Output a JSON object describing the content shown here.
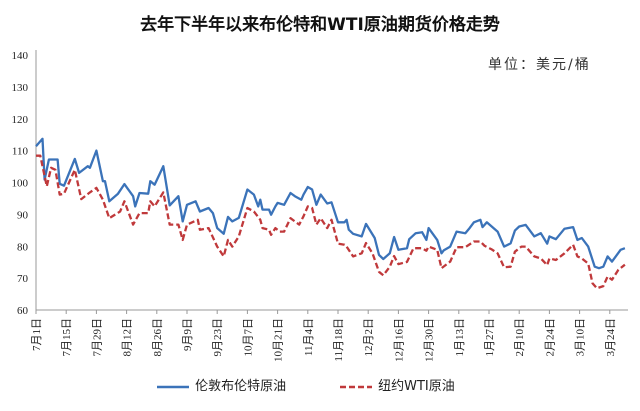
{
  "chart_data": {
    "type": "line",
    "title": "去年下半年以来布伦特和WTI原油期货价格走势",
    "unit_label": "单位：美元/桶",
    "xlabel": "",
    "ylabel": "",
    "ylim": [
      60,
      140
    ],
    "yticks": [
      60,
      70,
      80,
      90,
      100,
      110,
      120,
      130,
      140
    ],
    "xtick_labels": [
      "7月1日",
      "7月15日",
      "7月29日",
      "8月12日",
      "8月26日",
      "9月9日",
      "9月23日",
      "10月7日",
      "10月21日",
      "11月4日",
      "11月18日",
      "12月2日",
      "12月16日",
      "12月30日",
      "1月13日",
      "1月27日",
      "2月10日",
      "2月24日",
      "3月10日",
      "3月24日"
    ],
    "grid": false,
    "legend_position": "bottom",
    "series": [
      {
        "name": "伦敦布伦特原油",
        "color": "#3b73b9",
        "style": "solid",
        "points": [
          [
            "7/1",
            111.4
          ],
          [
            "7/4",
            113.7
          ],
          [
            "7/5",
            100.9
          ],
          [
            "7/7",
            107.2
          ],
          [
            "7/11",
            107.2
          ],
          [
            "7/12",
            99.6
          ],
          [
            "7/14",
            99
          ],
          [
            "7/19",
            107.4
          ],
          [
            "7/21",
            103
          ],
          [
            "7/25",
            105.1
          ],
          [
            "7/26",
            104.6
          ],
          [
            "7/29",
            110
          ],
          [
            "8/1",
            100.4
          ],
          [
            "8/2",
            100.4
          ],
          [
            "8/4",
            94.1
          ],
          [
            "8/8",
            96.5
          ],
          [
            "8/11",
            99.5
          ],
          [
            "8/15",
            95.7
          ],
          [
            "8/16",
            92.5
          ],
          [
            "8/18",
            96.7
          ],
          [
            "8/22",
            96.5
          ],
          [
            "8/23",
            100.4
          ],
          [
            "8/25",
            99.3
          ],
          [
            "8/29",
            105.1
          ],
          [
            "9/1",
            92.8
          ],
          [
            "9/5",
            95.7
          ],
          [
            "9/7",
            87.8
          ],
          [
            "9/9",
            93
          ],
          [
            "9/13",
            94.1
          ],
          [
            "9/15",
            90.9
          ],
          [
            "9/19",
            92
          ],
          [
            "9/21",
            90.4
          ],
          [
            "9/23",
            85.7
          ],
          [
            "9/26",
            83.9
          ],
          [
            "9/28",
            89.2
          ],
          [
            "9/30",
            87.8
          ],
          [
            "10/3",
            88.9
          ],
          [
            "10/7",
            97.8
          ],
          [
            "10/10",
            96.2
          ],
          [
            "10/12",
            92.5
          ],
          [
            "10/13",
            94.6
          ],
          [
            "10/14",
            91.5
          ],
          [
            "10/17",
            91.5
          ],
          [
            "10/18",
            89.9
          ],
          [
            "10/20",
            92.5
          ],
          [
            "10/21",
            93.6
          ],
          [
            "10/24",
            93
          ],
          [
            "10/27",
            96.7
          ],
          [
            "10/29",
            95.7
          ],
          [
            "11/1",
            94.6
          ],
          [
            "11/2",
            96.2
          ],
          [
            "11/4",
            98.6
          ],
          [
            "11/6",
            97.8
          ],
          [
            "11/8",
            93
          ],
          [
            "11/10",
            96.2
          ],
          [
            "11/13",
            93.4
          ],
          [
            "11/15",
            93.8
          ],
          [
            "11/18",
            87.5
          ],
          [
            "11/21",
            87.5
          ],
          [
            "11/22",
            88.3
          ],
          [
            "11/23",
            85.2
          ],
          [
            "11/25",
            83.9
          ],
          [
            "11/29",
            83.1
          ],
          [
            "12/1",
            87
          ],
          [
            "12/5",
            82.6
          ],
          [
            "12/7",
            77.3
          ],
          [
            "12/9",
            76
          ],
          [
            "12/12",
            77.8
          ],
          [
            "12/14",
            82.9
          ],
          [
            "12/16",
            78.9
          ],
          [
            "12/20",
            79.4
          ],
          [
            "12/21",
            82.2
          ],
          [
            "12/24",
            84.1
          ],
          [
            "12/27",
            84.4
          ],
          [
            "12/29",
            82
          ],
          [
            "12/30",
            85.7
          ],
          [
            "1/3",
            82
          ],
          [
            "1/5",
            77.8
          ],
          [
            "1/6",
            78.7
          ],
          [
            "1/9",
            79.9
          ],
          [
            "1/12",
            84.6
          ],
          [
            "1/16",
            84.1
          ],
          [
            "1/18",
            85.7
          ],
          [
            "1/20",
            87.5
          ],
          [
            "1/23",
            88.3
          ],
          [
            "1/24",
            86
          ],
          [
            "1/26",
            87.5
          ],
          [
            "1/31",
            84.6
          ],
          [
            "2/3",
            79.9
          ],
          [
            "2/6",
            80.9
          ],
          [
            "2/8",
            84.9
          ],
          [
            "2/10",
            86.2
          ],
          [
            "2/13",
            86.7
          ],
          [
            "2/17",
            83.1
          ],
          [
            "2/20",
            84.1
          ],
          [
            "2/23",
            80.8
          ],
          [
            "2/24",
            83.1
          ],
          [
            "2/27",
            82.2
          ],
          [
            "3/3",
            85.5
          ],
          [
            "3/7",
            86
          ],
          [
            "3/9",
            82
          ],
          [
            "3/11",
            82.6
          ],
          [
            "3/14",
            79.9
          ],
          [
            "3/17",
            73.6
          ],
          [
            "3/19",
            73.1
          ],
          [
            "3/21",
            73.6
          ],
          [
            "3/23",
            76.8
          ],
          [
            "3/25",
            75.2
          ],
          [
            "3/29",
            78.9
          ],
          [
            "3/31",
            79.4
          ]
        ]
      },
      {
        "name": "纽约WTI原油",
        "color": "#c0393b",
        "style": "dashed",
        "points": [
          [
            "7/1",
            108.4
          ],
          [
            "7/3",
            108.4
          ],
          [
            "7/4",
            105.1
          ],
          [
            "7/6",
            98.8
          ],
          [
            "7/8",
            104.6
          ],
          [
            "7/10",
            104
          ],
          [
            "7/12",
            96.2
          ],
          [
            "7/14",
            96.5
          ],
          [
            "7/19",
            104
          ],
          [
            "7/22",
            94.8
          ],
          [
            "7/26",
            96.9
          ],
          [
            "7/29",
            98.3
          ],
          [
            "8/1",
            94.6
          ],
          [
            "8/4",
            88.8
          ],
          [
            "8/9",
            90.9
          ],
          [
            "8/11",
            94.1
          ],
          [
            "8/15",
            86.8
          ],
          [
            "8/18",
            90.4
          ],
          [
            "8/22",
            90.4
          ],
          [
            "8/23",
            94.1
          ],
          [
            "8/25",
            92.5
          ],
          [
            "8/29",
            96.9
          ],
          [
            "9/1",
            86.8
          ],
          [
            "9/5",
            86.8
          ],
          [
            "9/7",
            82
          ],
          [
            "9/9",
            86.8
          ],
          [
            "9/14",
            88.3
          ],
          [
            "9/15",
            85.2
          ],
          [
            "9/19",
            85.7
          ],
          [
            "9/23",
            79.9
          ],
          [
            "9/26",
            76.8
          ],
          [
            "9/28",
            82
          ],
          [
            "9/30",
            79.9
          ],
          [
            "10/3",
            83.1
          ],
          [
            "10/7",
            92
          ],
          [
            "10/10",
            90.9
          ],
          [
            "10/13",
            88.3
          ],
          [
            "10/14",
            85.7
          ],
          [
            "10/17",
            85.2
          ],
          [
            "10/18",
            83.6
          ],
          [
            "10/20",
            85.7
          ],
          [
            "10/22",
            84.6
          ],
          [
            "10/24",
            84.6
          ],
          [
            "10/27",
            88.8
          ],
          [
            "10/31",
            86.8
          ],
          [
            "11/2",
            89.4
          ],
          [
            "11/4",
            92.5
          ],
          [
            "11/6",
            92
          ],
          [
            "11/8",
            86.8
          ],
          [
            "11/10",
            88.8
          ],
          [
            "11/13",
            85.7
          ],
          [
            "11/15",
            88.3
          ],
          [
            "11/18",
            80.8
          ],
          [
            "11/21",
            80.5
          ],
          [
            "11/22",
            79.9
          ],
          [
            "11/25",
            76.8
          ],
          [
            "11/29",
            77.8
          ],
          [
            "12/1",
            81
          ],
          [
            "12/4",
            77.8
          ],
          [
            "12/7",
            72
          ],
          [
            "12/9",
            70.9
          ],
          [
            "12/12",
            73.6
          ],
          [
            "12/14",
            76.9
          ],
          [
            "12/16",
            74.4
          ],
          [
            "12/20",
            75.1
          ],
          [
            "12/23",
            79.4
          ],
          [
            "12/27",
            79.4
          ],
          [
            "12/29",
            78.6
          ],
          [
            "12/30",
            79.9
          ],
          [
            "1/3",
            78.9
          ],
          [
            "1/5",
            73.1
          ],
          [
            "1/9",
            75.2
          ],
          [
            "1/12",
            79.7
          ],
          [
            "1/16",
            79.7
          ],
          [
            "1/20",
            81.5
          ],
          [
            "1/23",
            81.5
          ],
          [
            "1/25",
            80.1
          ],
          [
            "1/28",
            79.1
          ],
          [
            "1/31",
            77.8
          ],
          [
            "2/3",
            73.4
          ],
          [
            "2/6",
            73.6
          ],
          [
            "2/8",
            78.3
          ],
          [
            "2/11",
            79.9
          ],
          [
            "2/13",
            79.9
          ],
          [
            "2/17",
            76.8
          ],
          [
            "2/20",
            76.2
          ],
          [
            "2/23",
            74.1
          ],
          [
            "2/24",
            76.2
          ],
          [
            "2/27",
            75.7
          ],
          [
            "3/3",
            77.8
          ],
          [
            "3/7",
            80.5
          ],
          [
            "3/9",
            76.8
          ],
          [
            "3/11",
            76.2
          ],
          [
            "3/14",
            74.6
          ],
          [
            "3/16",
            68.4
          ],
          [
            "3/18",
            66.8
          ],
          [
            "3/21",
            67.5
          ],
          [
            "3/23",
            70.5
          ],
          [
            "3/25",
            69.5
          ],
          [
            "3/28",
            72.6
          ],
          [
            "3/31",
            74.2
          ]
        ]
      }
    ]
  }
}
